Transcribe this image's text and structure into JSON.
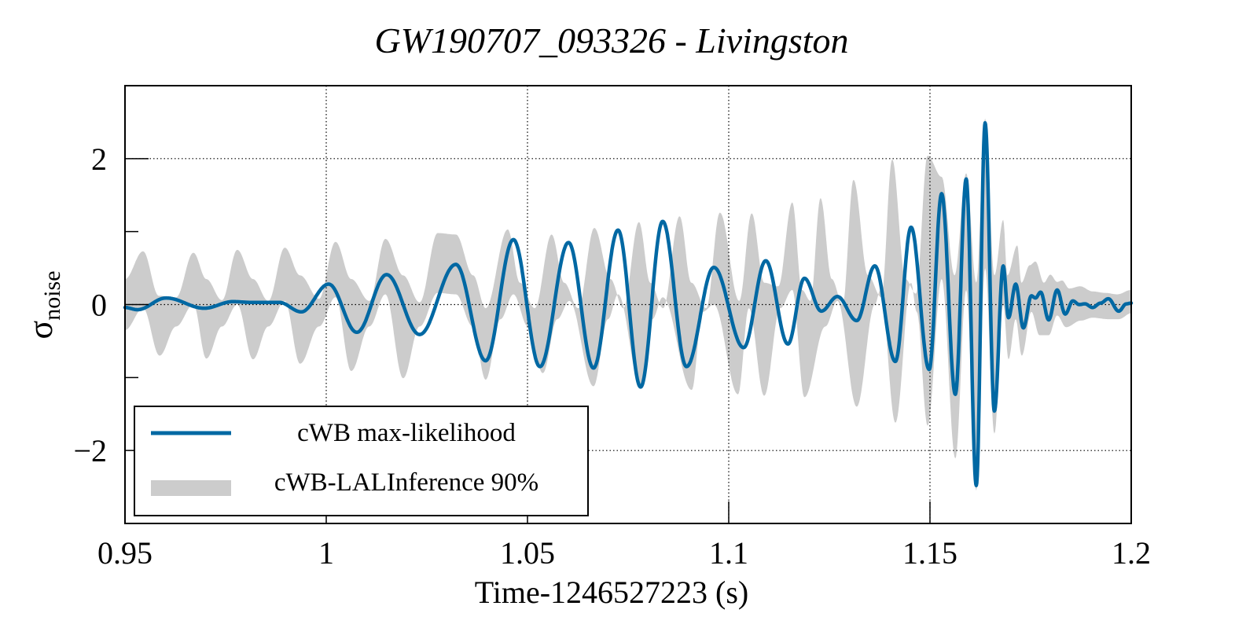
{
  "chart_data": {
    "type": "line",
    "title": "GW190707_093326 - Livingston",
    "xlabel": "Time-1246527223 (s)",
    "ylabel": "σ",
    "ylabel_subscript": "noise",
    "xlim": [
      0.95,
      1.2
    ],
    "ylim": [
      -3,
      3
    ],
    "grid": true,
    "x_ticks": [
      0.95,
      1.0,
      1.05,
      1.1,
      1.15,
      1.2
    ],
    "x_tick_labels": [
      "0.95",
      "1",
      "1.05",
      "1.1",
      "1.15",
      "1.2"
    ],
    "y_ticks": [
      -2,
      0,
      2
    ],
    "y_tick_labels": [
      "−2",
      "0",
      "2"
    ],
    "y_minor_ticks": [
      -1,
      1
    ],
    "legend_position": "bottom-left",
    "colors": {
      "line": "#0068a3",
      "band": "#cccccc"
    },
    "series": [
      {
        "name": "cWB max-likelihood",
        "kind": "line",
        "x": [
          0.95,
          0.9531,
          0.9602,
          0.9697,
          0.9768,
          0.9814,
          0.9883,
          0.9938,
          1.0006,
          1.0076,
          1.015,
          1.0232,
          1.0322,
          1.0396,
          1.0465,
          1.0531,
          1.0602,
          1.0664,
          1.0725,
          1.0781,
          1.0836,
          1.0895,
          1.0963,
          1.1037,
          1.1092,
          1.1147,
          1.1188,
          1.123,
          1.127,
          1.1318,
          1.1363,
          1.1414,
          1.1453,
          1.1498,
          1.1529,
          1.1563,
          1.159,
          1.1615,
          1.1637,
          1.166,
          1.1682,
          1.1695,
          1.1713,
          1.1732,
          1.1752,
          1.1762,
          1.1775,
          1.1795,
          1.1816,
          1.1836,
          1.1855,
          1.1871,
          1.1885,
          1.1904,
          1.1924,
          1.1943,
          1.1969,
          1.1988,
          1.2
        ],
        "y": [
          -0.04,
          -0.07,
          0.09,
          -0.05,
          0.04,
          0.03,
          0.03,
          -0.1,
          0.28,
          -0.38,
          0.41,
          -0.41,
          0.55,
          -0.77,
          0.89,
          -0.85,
          0.85,
          -0.87,
          1.02,
          -1.13,
          1.14,
          -0.85,
          0.51,
          -0.59,
          0.6,
          -0.54,
          0.36,
          -0.09,
          0.11,
          -0.22,
          0.53,
          -0.78,
          1.06,
          -0.89,
          1.52,
          -1.23,
          1.72,
          -2.48,
          2.49,
          -1.46,
          0.53,
          -0.18,
          0.28,
          -0.32,
          0.12,
          0.09,
          0.17,
          -0.21,
          0.2,
          -0.13,
          0.05,
          0.0,
          0.01,
          -0.04,
          0.02,
          0.08,
          -0.09,
          0.01,
          0.02
        ]
      },
      {
        "name": "cWB-LALInference 90%",
        "kind": "band",
        "upper_x": [
          0.95,
          0.9545,
          0.9584,
          0.9627,
          0.967,
          0.9702,
          0.9741,
          0.9779,
          0.9818,
          0.9856,
          0.9897,
          0.9935,
          0.9982,
          1.0023,
          1.0062,
          1.0107,
          1.0147,
          1.0191,
          1.0232,
          1.0277,
          1.0322,
          1.0365,
          1.0396,
          1.0451,
          1.0481,
          1.0518,
          1.056,
          1.0591,
          1.0626,
          1.0666,
          1.0706,
          1.0738,
          1.0777,
          1.0805,
          1.0837,
          1.0878,
          1.0907,
          1.0944,
          1.0978,
          1.1026,
          1.1057,
          1.1088,
          1.1123,
          1.1158,
          1.1182,
          1.1203,
          1.1228,
          1.1256,
          1.1283,
          1.131,
          1.1346,
          1.1379,
          1.1406,
          1.1439,
          1.1465,
          1.1494,
          1.1529,
          1.1561,
          1.159,
          1.1615,
          1.1637,
          1.166,
          1.1682,
          1.1692,
          1.1717,
          1.1727,
          1.1748,
          1.1762,
          1.1783,
          1.1799,
          1.1816,
          1.1828,
          1.1846,
          1.1873,
          1.1904,
          1.1936,
          1.1965,
          1.2
        ],
        "upper_y": [
          0.35,
          0.73,
          0.12,
          0.1,
          0.71,
          0.35,
          0.06,
          0.75,
          0.35,
          0.05,
          0.78,
          0.4,
          0.08,
          0.86,
          0.35,
          0.05,
          0.9,
          0.4,
          0.03,
          0.98,
          0.96,
          0.4,
          -0.05,
          1.03,
          0.3,
          -0.05,
          0.96,
          0.3,
          -0.05,
          1.05,
          0.35,
          -0.05,
          1.13,
          0.3,
          -0.05,
          1.21,
          0.3,
          -0.05,
          1.26,
          0.05,
          1.25,
          0.3,
          0.25,
          1.4,
          0.2,
          0.05,
          1.46,
          0.35,
          0.0,
          1.71,
          0.4,
          0.1,
          1.99,
          0.35,
          0.15,
          2.04,
          1.75,
          0.4,
          1.8,
          0.3,
          2.55,
          0.4,
          1.16,
          0.4,
          0.81,
          0.3,
          0.54,
          0.59,
          0.3,
          0.41,
          0.31,
          0.33,
          0.22,
          0.25,
          0.18,
          0.16,
          0.14,
          0.2
        ],
        "lower_x": [
          0.95,
          0.9545,
          0.9586,
          0.9627,
          0.967,
          0.9702,
          0.9741,
          0.9779,
          0.9818,
          0.9856,
          0.9897,
          0.9935,
          0.9982,
          1.0023,
          1.0062,
          1.0107,
          1.0147,
          1.0191,
          1.0232,
          1.0277,
          1.0322,
          1.0364,
          1.0396,
          1.0433,
          1.0465,
          1.0501,
          1.0538,
          1.0574,
          1.0604,
          1.0664,
          1.07,
          1.0725,
          1.0781,
          1.081,
          1.0836,
          1.0908,
          1.0935,
          1.0963,
          1.1023,
          1.105,
          1.1088,
          1.1128,
          1.1158,
          1.1188,
          1.124,
          1.127,
          1.1318,
          1.1363,
          1.1377,
          1.1414,
          1.1453,
          1.1467,
          1.1494,
          1.1529,
          1.1563,
          1.159,
          1.1615,
          1.1637,
          1.166,
          1.1682,
          1.1695,
          1.1713,
          1.1728,
          1.1752,
          1.1772,
          1.1795,
          1.1816,
          1.1838,
          1.1875,
          1.1904,
          1.1943,
          1.1969,
          1.2
        ],
        "lower_y": [
          -0.35,
          -0.05,
          -0.7,
          -0.3,
          0.0,
          -0.74,
          -0.3,
          0.0,
          -0.75,
          -0.3,
          0.05,
          -0.81,
          -0.3,
          0.1,
          -0.91,
          -0.3,
          0.14,
          -1.01,
          -0.3,
          0.16,
          0.14,
          -0.3,
          -1.03,
          -0.2,
          0.14,
          -0.3,
          -0.94,
          -0.2,
          0.05,
          -1.12,
          -0.2,
          0.14,
          -1.13,
          -0.2,
          0.1,
          -1.17,
          -0.1,
          0.0,
          -1.23,
          -0.05,
          -1.25,
          -0.05,
          0.2,
          -1.27,
          -0.3,
          0.05,
          -1.4,
          0.0,
          0.2,
          -1.62,
          0.3,
          -0.1,
          -1.66,
          0.35,
          -2.11,
          0.2,
          -2.55,
          0.5,
          -1.77,
          0.0,
          -0.75,
          -0.2,
          -0.7,
          -0.1,
          -0.42,
          -0.42,
          -0.15,
          -0.31,
          -0.22,
          -0.18,
          -0.2,
          -0.2,
          -0.12
        ]
      }
    ]
  }
}
